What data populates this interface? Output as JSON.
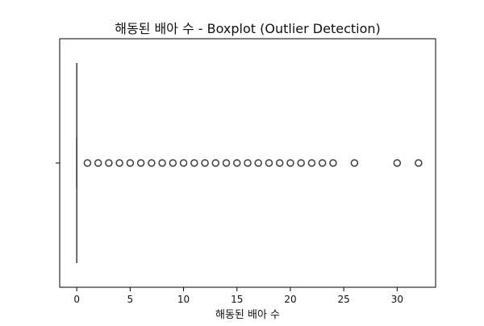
{
  "chart_data": {
    "type": "boxplot",
    "orientation": "horizontal",
    "title": "해동된 배아 수 - Boxplot (Outlier Detection)",
    "xlabel": "해동된 배아 수",
    "ylabel": "",
    "xlim": [
      -1.6,
      33.6
    ],
    "x_ticks": [
      0,
      5,
      10,
      15,
      20,
      25,
      30
    ],
    "grid": false,
    "box": {
      "min": 0,
      "q1": 0,
      "median": 0,
      "q3": 0,
      "max": 0
    },
    "outliers": [
      1,
      2,
      3,
      4,
      5,
      6,
      7,
      8,
      9,
      10,
      11,
      12,
      13,
      14,
      15,
      16,
      17,
      18,
      19,
      20,
      21,
      22,
      23,
      24,
      26,
      30,
      32
    ],
    "colors": {
      "box_line": "#3d3d3d",
      "outlier_edge": "#3d3d3d",
      "axis": "#000000"
    }
  }
}
